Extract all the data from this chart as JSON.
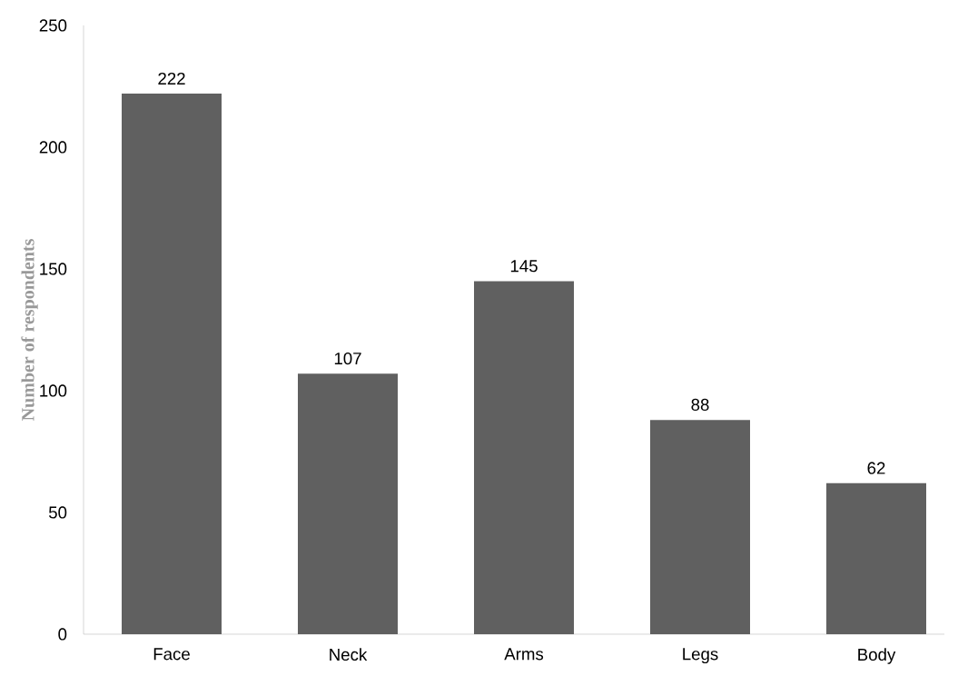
{
  "chart_data": {
    "type": "bar",
    "ylabel": "Number of respondents",
    "categories": [
      "Face",
      "Neck",
      "Arms",
      "Legs",
      "Body"
    ],
    "values": [
      222,
      107,
      145,
      88,
      62
    ],
    "color": "#606060",
    "ylim": [
      0,
      250
    ],
    "yticks": [
      0,
      50,
      100,
      150,
      200,
      250
    ],
    "data_labels": true
  }
}
